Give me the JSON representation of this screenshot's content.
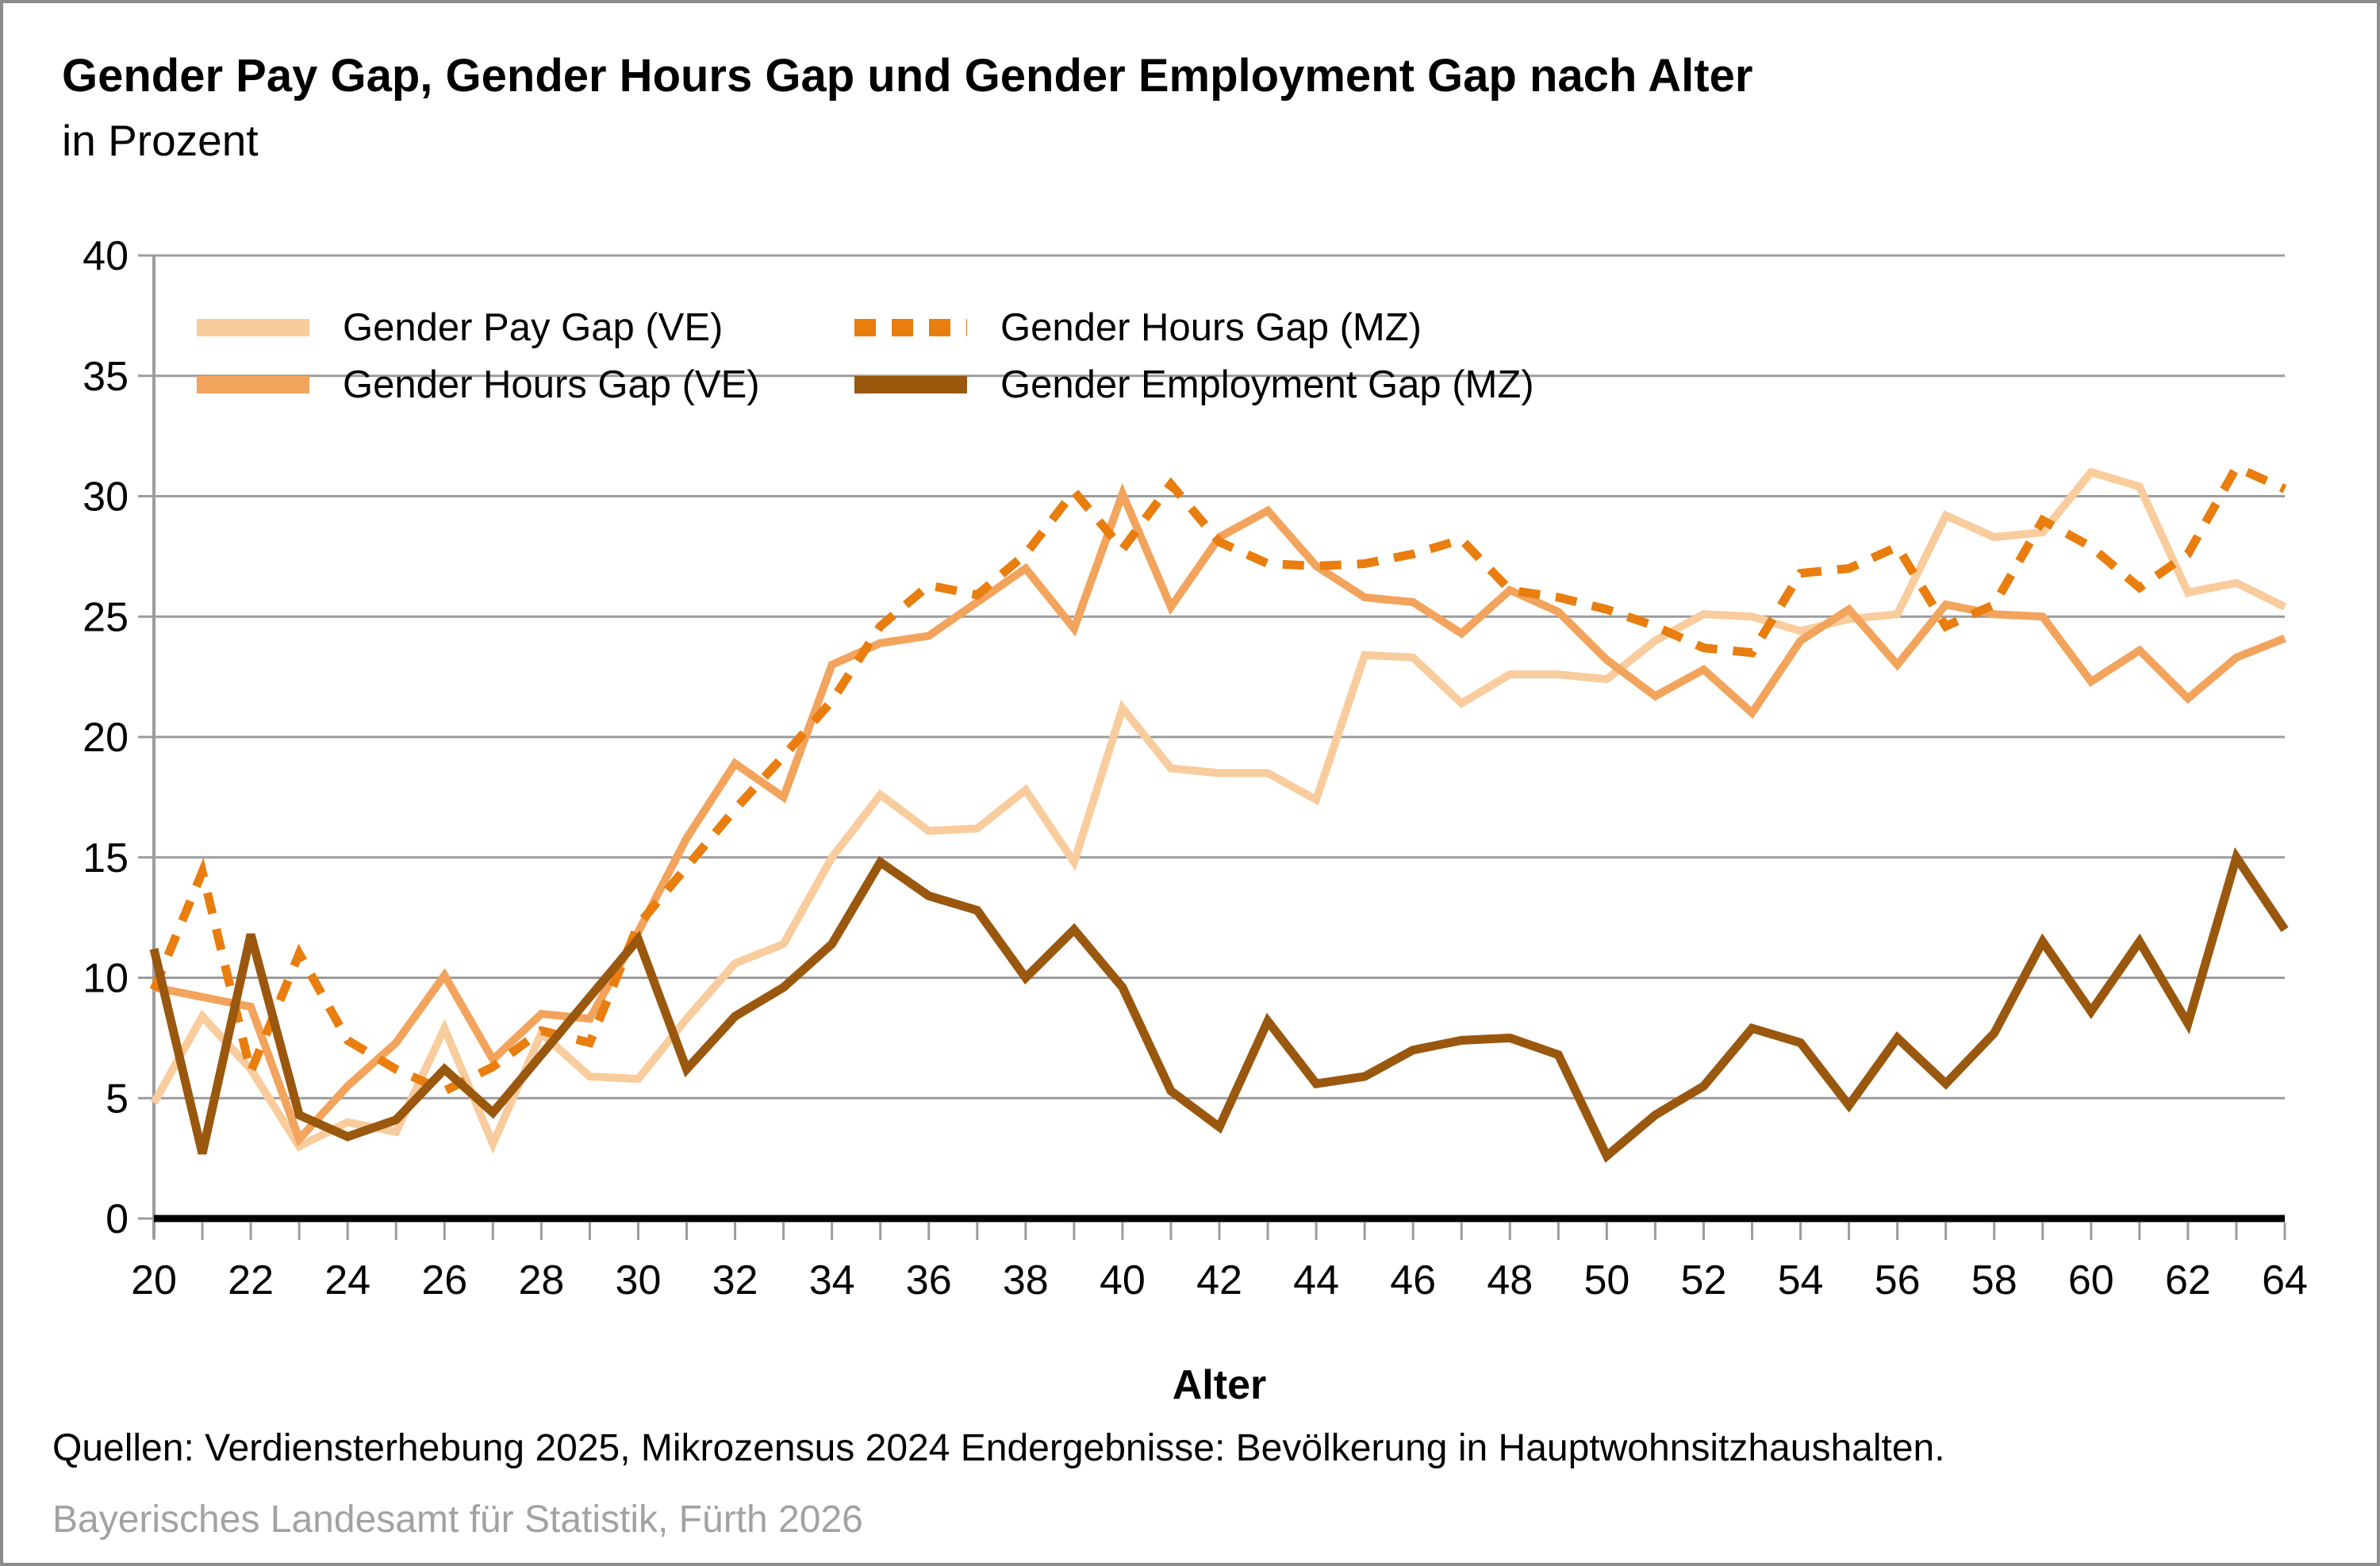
{
  "header": {
    "title": "Gender Pay Gap, Gender Hours Gap und Gender Employment Gap nach Alter",
    "subtitle": "in Prozent"
  },
  "legend": {
    "items": [
      {
        "key": "pay_ve",
        "label": "Gender Pay Gap (VE)"
      },
      {
        "key": "hours_mz",
        "label": "Gender Hours Gap (MZ)"
      },
      {
        "key": "hours_ve",
        "label": "Gender Hours Gap (VE)"
      },
      {
        "key": "empl_mz",
        "label": "Gender Employment Gap (MZ)"
      }
    ]
  },
  "chart_data": {
    "type": "line",
    "xlabel": "Alter",
    "ylabel": "",
    "x": [
      20,
      21,
      22,
      23,
      24,
      25,
      26,
      27,
      28,
      29,
      30,
      31,
      32,
      33,
      34,
      35,
      36,
      37,
      38,
      39,
      40,
      41,
      42,
      43,
      44,
      45,
      46,
      47,
      48,
      49,
      50,
      51,
      52,
      53,
      54,
      55,
      56,
      57,
      58,
      59,
      60,
      61,
      62,
      63,
      64
    ],
    "xtick_labels": [
      20,
      22,
      24,
      26,
      28,
      30,
      32,
      34,
      36,
      38,
      40,
      42,
      44,
      46,
      48,
      50,
      52,
      54,
      56,
      58,
      60,
      62,
      64
    ],
    "ylim": [
      0,
      40
    ],
    "yticks": [
      0,
      5,
      10,
      15,
      20,
      25,
      30,
      35,
      40
    ],
    "grid": true,
    "legend_position": "top-left-inside",
    "series": [
      {
        "key": "pay_ve",
        "name": "Gender Pay Gap (VE)",
        "color": "#f8cc9d",
        "dashed": false,
        "values": [
          4.8,
          8.4,
          6.2,
          3.0,
          4.0,
          3.6,
          7.9,
          3.1,
          7.7,
          5.9,
          5.8,
          8.3,
          10.6,
          11.4,
          15.0,
          17.6,
          16.1,
          16.2,
          17.8,
          14.8,
          21.2,
          18.7,
          18.5,
          18.5,
          17.4,
          23.4,
          23.3,
          21.4,
          22.6,
          22.6,
          22.4,
          24.0,
          25.1,
          25.0,
          24.4,
          24.9,
          25.1,
          29.2,
          28.3,
          28.5,
          31.0,
          30.4,
          26.0,
          26.4,
          25.4
        ]
      },
      {
        "key": "hours_ve",
        "name": "Gender Hours Gap (VE)",
        "color": "#f2a35c",
        "dashed": false,
        "values": [
          9.6,
          9.2,
          8.8,
          3.3,
          5.5,
          7.3,
          10.1,
          6.6,
          8.5,
          8.3,
          11.9,
          15.8,
          18.9,
          17.5,
          23.0,
          23.9,
          24.2,
          25.6,
          27.0,
          24.5,
          30.1,
          25.4,
          28.3,
          29.4,
          27.1,
          25.8,
          25.6,
          24.3,
          26.1,
          25.2,
          23.2,
          21.7,
          22.8,
          21.0,
          24.0,
          25.3,
          23.0,
          25.5,
          25.1,
          25.0,
          22.3,
          23.6,
          21.6,
          23.3,
          24.1
        ]
      },
      {
        "key": "hours_mz",
        "name": "Gender Hours Gap (MZ)",
        "color": "#e97d0e",
        "dashed": true,
        "values": [
          9.5,
          14.4,
          6.1,
          11.0,
          7.4,
          6.2,
          5.3,
          6.3,
          7.8,
          7.3,
          12.2,
          14.6,
          17.0,
          19.2,
          21.5,
          24.6,
          26.3,
          25.9,
          27.6,
          30.2,
          27.8,
          30.5,
          28.1,
          27.2,
          27.1,
          27.2,
          27.6,
          28.2,
          26.1,
          25.8,
          25.3,
          24.6,
          23.7,
          23.5,
          26.8,
          27.0,
          27.9,
          24.6,
          25.5,
          29.0,
          27.9,
          26.2,
          27.6,
          31.2,
          30.3
        ]
      },
      {
        "key": "empl_mz",
        "name": "Gender Employment Gap (MZ)",
        "color": "#9a570e",
        "dashed": false,
        "values": [
          11.2,
          2.7,
          11.8,
          4.3,
          3.4,
          4.1,
          6.2,
          4.4,
          6.8,
          9.2,
          11.6,
          6.2,
          8.4,
          9.6,
          11.4,
          14.8,
          13.4,
          12.8,
          10.0,
          12.0,
          9.6,
          5.3,
          3.8,
          8.2,
          5.6,
          5.9,
          7.0,
          7.4,
          7.5,
          6.8,
          2.6,
          4.3,
          5.5,
          7.9,
          7.3,
          4.7,
          7.5,
          5.6,
          7.7,
          11.5,
          8.6,
          11.5,
          8.1,
          15.0,
          12.0
        ]
      }
    ],
    "colors": {
      "grid": "#9c9c9c",
      "axis_x": "#000000",
      "axis_y": "#9c9c9c",
      "tick": "#9c9c9c",
      "tick_text": "#000000"
    }
  },
  "footer": {
    "source_line": "Quellen: Verdiensterhebung 2025, Mikrozensus 2024 Endergebnisse: Bevölkerung in Hauptwohnsitzhaushalten.",
    "publisher_line": "Bayerisches Landesamt für Statistik, Fürth 2026"
  }
}
